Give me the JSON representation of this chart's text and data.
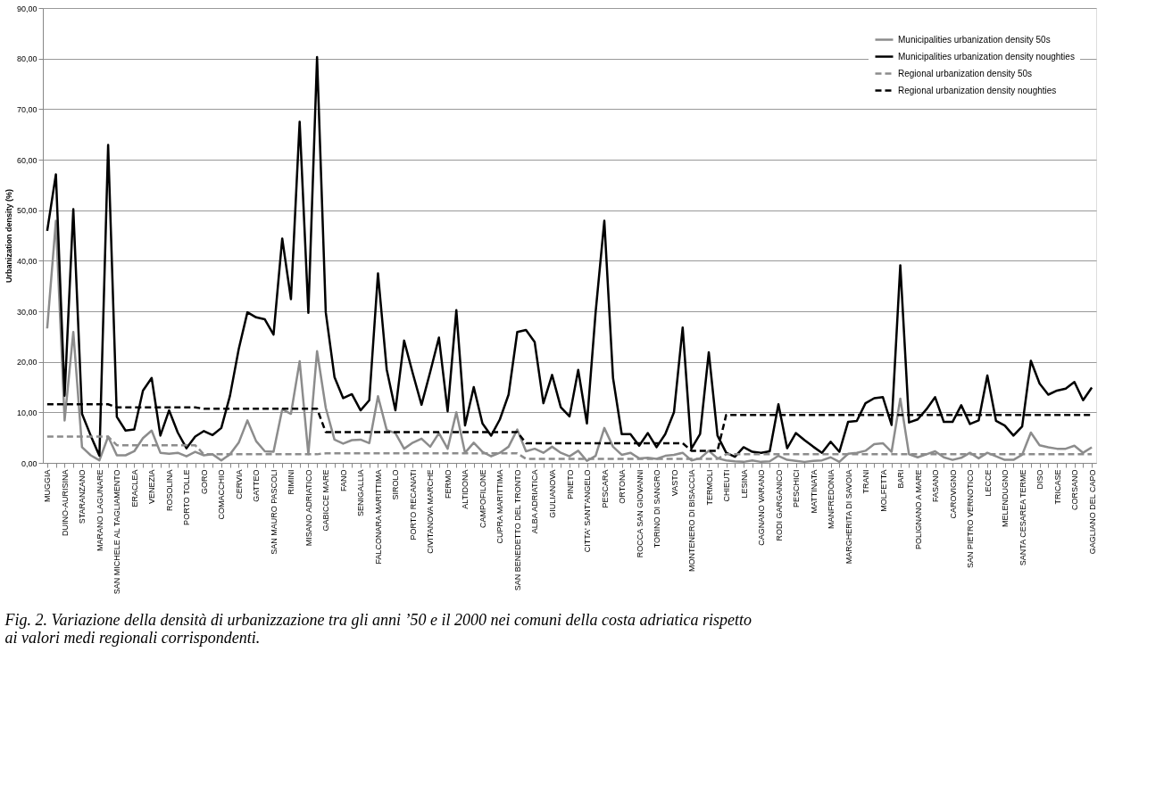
{
  "chart_data": {
    "type": "line",
    "ylabel": "Urbanization density (%)",
    "annotations": [
      "Fig. 2.   Variazione della densità di urbanizzazione tra gli anni ’50 e il 2000 nei comuni della costa adriatica rispetto ai valori medi regionali corrispondenti."
    ],
    "categories": [
      "MUGGIA",
      null,
      "DUINO-AURISINA",
      null,
      "STARANZANO",
      null,
      "MARANO LAGUNARE",
      null,
      "SAN MICHELE AL TAGLIAMENTO",
      null,
      "ERACLEA",
      null,
      "VENEZIA",
      null,
      "ROSOLINA",
      null,
      "PORTO TOLLE",
      null,
      "GORO",
      null,
      "COMACCHIO",
      null,
      "CERVIA",
      null,
      "GATTEO",
      null,
      "SAN MAURO PASCOLI",
      null,
      "RIMINI",
      null,
      "MISANO ADRIATICO",
      null,
      "GABICCE MARE",
      null,
      "FANO",
      null,
      "SENIGALLIA",
      null,
      "FALCONARA MARITTIMA",
      null,
      "SIROLO",
      null,
      "PORTO RECANATI",
      null,
      "CIVITANOVA MARCHE",
      null,
      "FERMO",
      null,
      "ALTIDONA",
      null,
      "CAMPOFILONE",
      null,
      "CUPRA MARITTIMA",
      null,
      "SAN BENEDETTO DEL TRONTO",
      null,
      "ALBA ADRIATICA",
      null,
      "GIULIANOVA",
      null,
      "PINETO",
      null,
      "CITTA' SANT'ANGELO",
      null,
      "PESCARA",
      null,
      "ORTONA",
      null,
      "ROCCA SAN GIOVANNI",
      null,
      "TORINO DI SANGRO",
      null,
      "VASTO",
      null,
      "MONTENERO DI BISACCIA",
      null,
      "TERMOLI",
      null,
      "CHIEUTI",
      null,
      "LESINA",
      null,
      "CAGNANO VARANO",
      null,
      "RODI GARGANICO",
      null,
      "PESCHICI",
      null,
      "MATTINATA",
      null,
      "MANFREDONIA",
      null,
      "MARGHERITA DI SAVOIA",
      null,
      "TRANI",
      null,
      "MOLFETTA",
      null,
      "BARI",
      null,
      "POLIGNANO A MARE",
      null,
      "FASANO",
      null,
      "CAROVIGNO",
      null,
      "SAN PIETRO VERNOTICO",
      null,
      "LECCE",
      null,
      "MELENDUGNO",
      null,
      "SANTA CESAREA TERME",
      null,
      "DISO",
      null,
      "TRICASE",
      null,
      "CORSANO",
      null,
      "GAGLIANO DEL CAPO"
    ],
    "series": [
      {
        "name": "Municipalities urbanization density 50s",
        "color": "#8c8c8c",
        "line_style": "solid",
        "values": [
          26.6,
          47.9,
          8.4,
          25.9,
          3.1,
          1.5,
          0.5,
          5.2,
          1.5,
          1.5,
          2.3,
          4.9,
          6.4,
          2.0,
          1.8,
          2.0,
          1.3,
          2.2,
          1.5,
          1.7,
          0.5,
          1.7,
          4.0,
          8.4,
          4.3,
          2.3,
          2.2,
          10.6,
          9.7,
          20.1,
          1.7,
          22.1,
          10.9,
          4.6,
          3.8,
          4.5,
          4.6,
          3.9,
          13.2,
          6.5,
          5.9,
          2.8,
          4.0,
          4.8,
          3.2,
          5.9,
          2.8,
          10.0,
          2.0,
          4.0,
          2.2,
          1.3,
          2.0,
          3.2,
          6.6,
          2.3,
          2.8,
          2.0,
          3.2,
          2.0,
          1.3,
          2.4,
          0.4,
          1.4,
          6.9,
          3.2,
          1.6,
          2.0,
          0.9,
          1.0,
          0.8,
          1.4,
          1.6,
          2.0,
          0.5,
          0.9,
          2.4,
          0.9,
          0.5,
          0.3,
          0.2,
          0.5,
          0.2,
          0.3,
          1.4,
          0.6,
          0.4,
          0.2,
          0.4,
          0.5,
          1.1,
          0.2,
          1.8,
          2.0,
          2.4,
          3.7,
          3.9,
          2.2,
          12.7,
          1.7,
          1.1,
          1.7,
          2.3,
          1.1,
          0.6,
          1.0,
          2.0,
          0.9,
          2.0,
          1.3,
          0.6,
          0.6,
          1.6,
          6.0,
          3.5,
          3.1,
          2.8,
          2.8,
          3.4,
          2.0,
          3.1
        ]
      },
      {
        "name": "Municipalities urbanization density noughties",
        "color": "#000000",
        "line_style": "solid",
        "values": [
          45.9,
          57.1,
          13.3,
          50.2,
          9.7,
          5.4,
          1.4,
          62.9,
          9.1,
          6.4,
          6.6,
          14.3,
          16.8,
          5.4,
          10.4,
          6.0,
          2.9,
          5.2,
          6.3,
          5.5,
          6.9,
          13.3,
          22.5,
          29.8,
          28.8,
          28.4,
          25.4,
          44.4,
          32.4,
          67.5,
          29.7,
          80.3,
          29.8,
          17.0,
          12.8,
          13.6,
          10.4,
          12.4,
          37.5,
          18.5,
          10.4,
          24.2,
          17.7,
          11.5,
          18.0,
          24.8,
          10.2,
          30.2,
          7.4,
          15.0,
          7.8,
          5.4,
          8.6,
          13.5,
          25.9,
          26.3,
          23.9,
          11.8,
          17.4,
          11.0,
          9.2,
          18.4,
          7.8,
          29.8,
          47.9,
          16.8,
          5.7,
          5.7,
          3.4,
          5.9,
          3.1,
          5.7,
          10.0,
          26.8,
          2.8,
          5.7,
          21.9,
          5.4,
          2.0,
          1.2,
          3.1,
          2.2,
          2.0,
          2.3,
          11.6,
          2.9,
          5.9,
          4.5,
          3.2,
          2.0,
          4.2,
          2.2,
          8.1,
          8.3,
          11.8,
          12.8,
          13.0,
          7.5,
          39.1,
          8.0,
          8.6,
          10.6,
          13.0,
          8.1,
          8.1,
          11.4,
          7.7,
          8.4,
          17.3,
          8.3,
          7.4,
          5.4,
          7.2,
          20.2,
          15.7,
          13.5,
          14.3,
          14.7,
          16.0,
          12.4,
          14.9
        ]
      },
      {
        "name": "Regional urbanization density 50s",
        "color": "#8c8c8c",
        "line_style": "dashed",
        "values": [
          5.2,
          5.2,
          5.2,
          5.2,
          5.2,
          5.2,
          5.2,
          5.2,
          3.5,
          3.5,
          3.5,
          3.5,
          3.5,
          3.5,
          3.5,
          3.5,
          3.5,
          3.5,
          1.7,
          1.7,
          1.7,
          1.7,
          1.7,
          1.7,
          1.7,
          1.7,
          1.7,
          1.7,
          1.7,
          1.7,
          1.7,
          1.7,
          1.9,
          1.9,
          1.9,
          1.9,
          1.9,
          1.9,
          1.9,
          1.9,
          1.9,
          1.9,
          1.9,
          1.9,
          1.9,
          1.9,
          1.9,
          1.9,
          1.9,
          1.9,
          1.9,
          1.9,
          1.9,
          1.9,
          1.9,
          0.8,
          0.8,
          0.8,
          0.8,
          0.8,
          0.8,
          0.8,
          0.8,
          0.8,
          0.8,
          0.8,
          0.8,
          0.8,
          0.8,
          0.8,
          0.8,
          0.8,
          0.8,
          0.8,
          0.8,
          0.8,
          0.8,
          0.8,
          1.7,
          1.7,
          1.7,
          1.7,
          1.7,
          1.7,
          1.7,
          1.7,
          1.7,
          1.7,
          1.7,
          1.7,
          1.7,
          1.7,
          1.7,
          1.7,
          1.7,
          1.7,
          1.7,
          1.7,
          1.7,
          1.7,
          1.7,
          1.7,
          1.7,
          1.7,
          1.7,
          1.7,
          1.7,
          1.7,
          1.7,
          1.7,
          1.7,
          1.7,
          1.7,
          1.7,
          1.7,
          1.7,
          1.7,
          1.7,
          1.7,
          1.7,
          1.7
        ]
      },
      {
        "name": "Regional urbanization density noughties",
        "color": "#000000",
        "line_style": "dashed",
        "values": [
          11.6,
          11.6,
          11.6,
          11.6,
          11.6,
          11.6,
          11.6,
          11.6,
          11.0,
          11.0,
          11.0,
          11.0,
          11.0,
          11.0,
          11.0,
          11.0,
          11.0,
          11.0,
          10.7,
          10.7,
          10.7,
          10.7,
          10.7,
          10.7,
          10.7,
          10.7,
          10.7,
          10.7,
          10.7,
          10.7,
          10.7,
          10.7,
          6.1,
          6.1,
          6.1,
          6.1,
          6.1,
          6.1,
          6.1,
          6.1,
          6.1,
          6.1,
          6.1,
          6.1,
          6.1,
          6.1,
          6.1,
          6.1,
          6.1,
          6.1,
          6.1,
          6.1,
          6.1,
          6.1,
          6.1,
          3.9,
          3.9,
          3.9,
          3.9,
          3.9,
          3.9,
          3.9,
          3.9,
          3.9,
          3.9,
          3.9,
          3.9,
          3.9,
          3.9,
          3.9,
          3.9,
          3.9,
          3.9,
          3.9,
          2.4,
          2.4,
          2.4,
          2.4,
          9.5,
          9.5,
          9.5,
          9.5,
          9.5,
          9.5,
          9.5,
          9.5,
          9.5,
          9.5,
          9.5,
          9.5,
          9.5,
          9.5,
          9.5,
          9.5,
          9.5,
          9.5,
          9.5,
          9.5,
          9.5,
          9.5,
          9.5,
          9.5,
          9.5,
          9.5,
          9.5,
          9.5,
          9.5,
          9.5,
          9.5,
          9.5,
          9.5,
          9.5,
          9.5,
          9.5,
          9.5,
          9.5,
          9.5,
          9.5,
          9.5,
          9.5,
          9.5
        ]
      }
    ],
    "ylim": [
      0,
      90
    ],
    "yticks": [
      {
        "value": 0,
        "label": "0,00"
      },
      {
        "value": 10,
        "label": "10,00"
      },
      {
        "value": 20,
        "label": "20,00"
      },
      {
        "value": 30,
        "label": "30,00"
      },
      {
        "value": 40,
        "label": "40,00"
      },
      {
        "value": 50,
        "label": "50,00"
      },
      {
        "value": 60,
        "label": "60,00"
      },
      {
        "value": 70,
        "label": "70,00"
      },
      {
        "value": 80,
        "label": "80,00"
      },
      {
        "value": 90,
        "label": "90,00"
      }
    ],
    "grid": "y",
    "legend": "top right",
    "marker": "none"
  }
}
